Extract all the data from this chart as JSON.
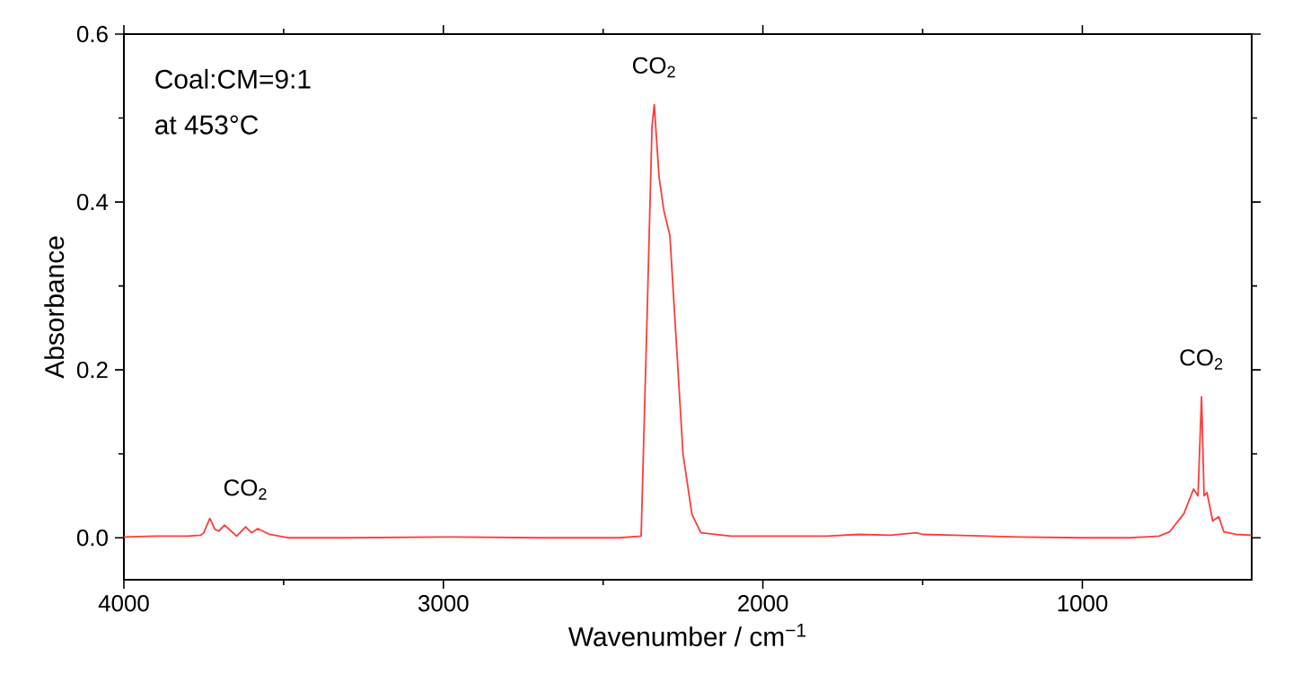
{
  "chart_data": {
    "type": "line",
    "xlabel": "Wavenumber / cm$^{−1}$",
    "ylabel": "Absorbance",
    "xlim": [
      4000,
      470
    ],
    "ylim": [
      -0.05,
      0.6
    ],
    "xticks": [
      4000,
      3000,
      2000,
      1000
    ],
    "yticks": [
      {
        "value": 0,
        "label": "0.0"
      },
      {
        "value": 0.2,
        "label": "0.2"
      },
      {
        "value": 0.4,
        "label": "0.4"
      },
      {
        "value": 0.6,
        "label": "0.6"
      }
    ],
    "grid": false,
    "annotations": [
      "Coal:CM=9:1",
      "at 453°C",
      {
        "text": "CO$_{2}$",
        "x": 2340,
        "y": 0.516
      },
      {
        "text": "CO$_{2}$",
        "x": 627,
        "y": 0.168
      },
      {
        "text": "CO$_{2}$",
        "x": 3619,
        "y": 0.013
      }
    ],
    "series": [
      {
        "color": "#ff3b3b",
        "x": [
          4000,
          3900,
          3800,
          3760,
          3750,
          3731,
          3715,
          3703,
          3685,
          3647,
          3619,
          3600,
          3581,
          3544,
          3488,
          3300,
          3000,
          2700,
          2450,
          2381,
          2362,
          2347,
          2340,
          2325,
          2310,
          2291,
          2250,
          2222,
          2194,
          2100,
          1800,
          1700,
          1600,
          1520,
          1500,
          1400,
          1200,
          1000,
          850,
          760,
          727,
          682,
          652,
          638,
          627,
          619,
          610,
          592,
          573,
          557,
          520,
          470
        ],
        "values": [
          0.001,
          0.002,
          0.002,
          0.003,
          0.006,
          0.023,
          0.01,
          0.008,
          0.015,
          0.002,
          0.013,
          0.006,
          0.011,
          0.004,
          0.0,
          0.0,
          0.001,
          0.0,
          0.0,
          0.002,
          0.27,
          0.49,
          0.516,
          0.43,
          0.39,
          0.36,
          0.1,
          0.028,
          0.006,
          0.002,
          0.002,
          0.004,
          0.003,
          0.006,
          0.004,
          0.003,
          0.001,
          0.0,
          0.0,
          0.002,
          0.007,
          0.029,
          0.058,
          0.05,
          0.168,
          0.05,
          0.054,
          0.02,
          0.025,
          0.007,
          0.004,
          0.003
        ]
      }
    ]
  }
}
